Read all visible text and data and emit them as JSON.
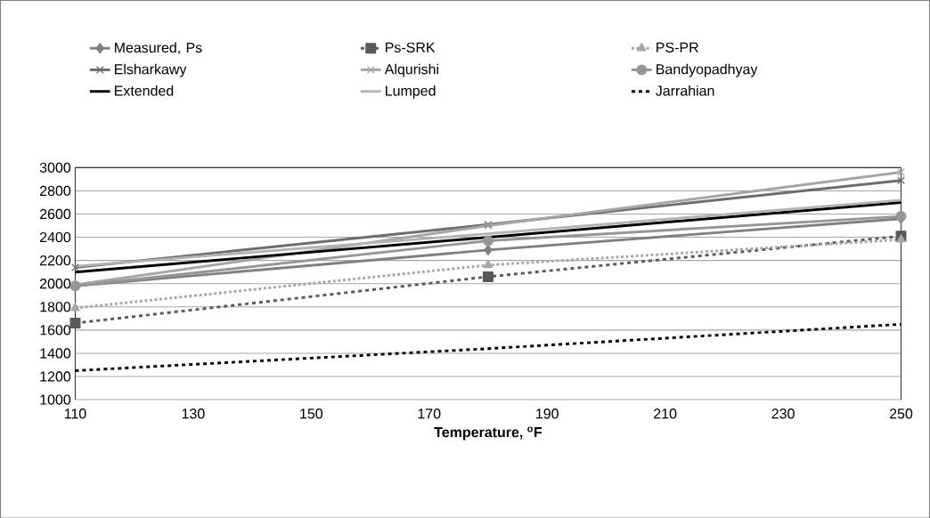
{
  "chart_data": {
    "type": "line",
    "xlabel": "Temperature, $^{o}$F",
    "x": [
      110,
      180,
      250
    ],
    "series": [
      {
        "name": "Measured, Ps",
        "color": "#808080",
        "marker": "diamond",
        "line_style": "solid",
        "values": [
          1980,
          2290,
          2560
        ]
      },
      {
        "name": "Ps-SRK",
        "color": "#595959",
        "marker": "square",
        "line_style": "dashed",
        "values": [
          1660,
          2060,
          2410
        ]
      },
      {
        "name": "PS-PR",
        "color": "#a6a6a6",
        "marker": "triangle",
        "line_style": "dotted",
        "values": [
          1790,
          2160,
          2380
        ]
      },
      {
        "name": "Elsharkawy",
        "color": "#6d6d6d",
        "marker": "cross",
        "line_style": "solid",
        "values": [
          2140,
          2510,
          2890
        ]
      },
      {
        "name": "Alqurishi",
        "color": "#a6a6a6",
        "marker": "cross",
        "line_style": "solid",
        "values": [
          1990,
          2500,
          2960
        ]
      },
      {
        "name": "Bandyopadhyay",
        "color": "#969696",
        "marker": "circle",
        "line_style": "solid",
        "values": [
          1980,
          2370,
          2580
        ]
      },
      {
        "name": "Extended",
        "color": "#000000",
        "marker": "none",
        "line_style": "solid",
        "values": [
          2100,
          2400,
          2700
        ]
      },
      {
        "name": "Lumped",
        "color": "#b3b3b3",
        "marker": "none",
        "line_style": "solid",
        "values": [
          2150,
          2430,
          2720
        ]
      },
      {
        "name": "Jarrahian",
        "color": "#000000",
        "marker": "none",
        "line_style": "dashed",
        "values": [
          1250,
          1440,
          1650
        ]
      }
    ],
    "xlim": [
      110,
      250
    ],
    "xticks": [
      110,
      130,
      150,
      170,
      190,
      210,
      230,
      250
    ],
    "ylim": [
      1000,
      3000
    ],
    "yticks": [
      1000,
      1200,
      1400,
      1600,
      1800,
      2000,
      2200,
      2400,
      2600,
      2800,
      3000
    ],
    "grid": "y",
    "legend": "top"
  }
}
